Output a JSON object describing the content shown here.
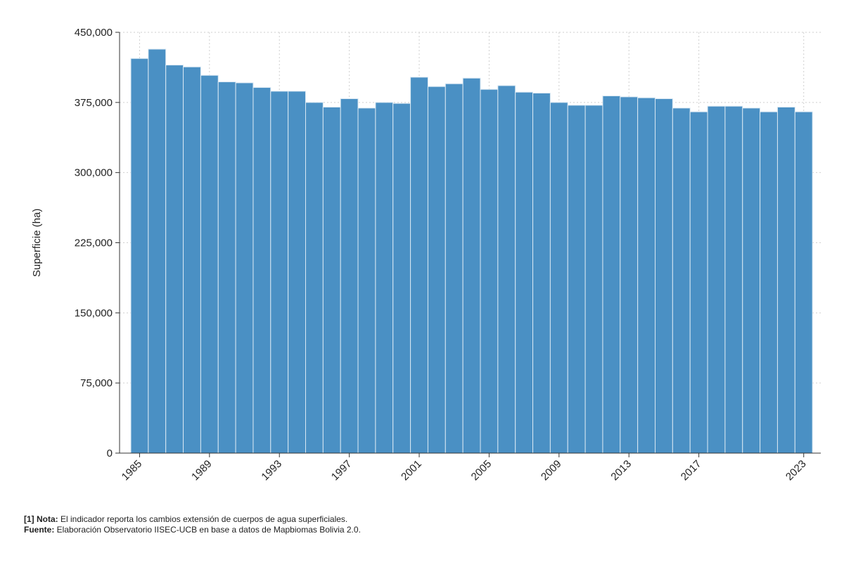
{
  "chart_data": {
    "type": "bar",
    "ylabel": "Superficie (ha)",
    "xlabel": "",
    "ylim": [
      0,
      450000
    ],
    "yticks": [
      0,
      75000,
      150000,
      225000,
      300000,
      375000,
      450000
    ],
    "ytick_labels": [
      "0",
      "75,000",
      "150,000",
      "225,000",
      "300,000",
      "375,000",
      "450,000"
    ],
    "xtick_years": [
      1985,
      1989,
      1993,
      1997,
      2001,
      2005,
      2009,
      2013,
      2017,
      2023
    ],
    "grid": true,
    "bar_color": "#4a90c4",
    "categories": [
      1985,
      1986,
      1987,
      1988,
      1989,
      1990,
      1991,
      1992,
      1993,
      1994,
      1995,
      1996,
      1997,
      1998,
      1999,
      2000,
      2001,
      2002,
      2003,
      2004,
      2005,
      2006,
      2007,
      2008,
      2009,
      2010,
      2011,
      2012,
      2013,
      2014,
      2015,
      2016,
      2017,
      2018,
      2019,
      2020,
      2021,
      2022,
      2023
    ],
    "values": [
      422000,
      432000,
      415000,
      413000,
      404000,
      397000,
      396000,
      391000,
      387000,
      387000,
      375000,
      370000,
      379000,
      369000,
      375000,
      374000,
      402000,
      392000,
      395000,
      401000,
      389000,
      393000,
      386000,
      385000,
      375000,
      372000,
      372000,
      382000,
      381000,
      380000,
      379000,
      369000,
      365000,
      371000,
      371000,
      369000,
      365000,
      370000,
      365000
    ]
  },
  "notes": {
    "note_label": "[1] Nota:",
    "note_text": " El indicador reporta los cambios extensión de cuerpos de agua superficiales.",
    "source_label": "Fuente:",
    "source_text": " Elaboración Observatorio IISEC-UCB en base a datos de Mapbiomas Bolivia 2.0."
  }
}
